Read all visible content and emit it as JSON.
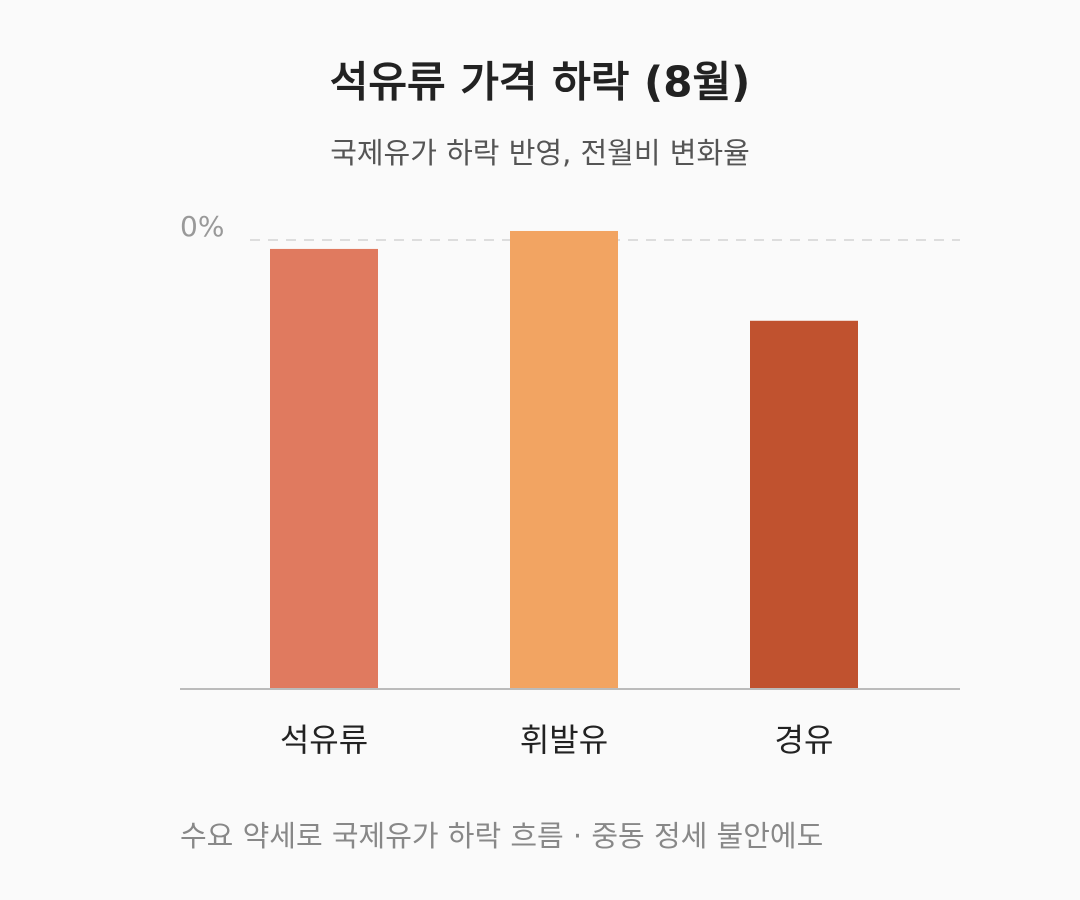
{
  "chart_data": {
    "type": "bar",
    "title": "석유류 가격 하락 (8월)",
    "subtitle": "국제유가 하락 반영, 전월비 변화율",
    "categories": [
      "석유류",
      "휘발유",
      "경유"
    ],
    "values": [
      -0.2,
      0.2,
      -1.8
    ],
    "colors": [
      "#e07a5f",
      "#f2a462",
      "#c0522f"
    ],
    "ylim": [
      -10,
      0.5
    ],
    "yticks": [
      {
        "value": 0,
        "label": "0%"
      }
    ],
    "grid": true,
    "note": "수요 약세로 국제유가 하락 흐름 · 중동 정세 불안에도"
  }
}
